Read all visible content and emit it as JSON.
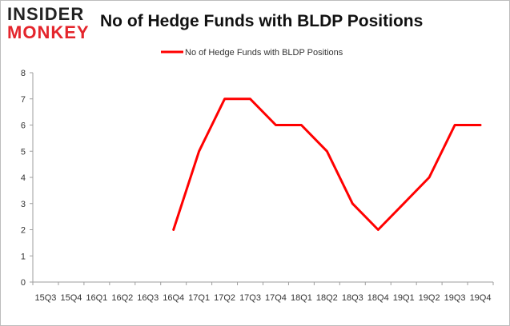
{
  "logo": {
    "line1": "INSIDER",
    "line2": "MONKEY"
  },
  "chart_data": {
    "type": "line",
    "title": "No of Hedge Funds with BLDP Positions",
    "xlabel": "",
    "ylabel": "",
    "categories": [
      "15Q3",
      "15Q4",
      "16Q1",
      "16Q2",
      "16Q3",
      "16Q4",
      "17Q1",
      "17Q2",
      "17Q3",
      "17Q4",
      "18Q1",
      "18Q2",
      "18Q3",
      "18Q4",
      "19Q1",
      "19Q2",
      "19Q3",
      "19Q4"
    ],
    "series": [
      {
        "name": "No of Hedge Funds with BLDP Positions",
        "color": "#ff0000",
        "values": [
          null,
          null,
          null,
          null,
          null,
          2,
          5,
          7,
          7,
          6,
          6,
          5,
          3,
          2,
          3,
          4,
          6,
          6
        ]
      }
    ],
    "ylim": [
      0,
      8
    ],
    "yticks": [
      0,
      1,
      2,
      3,
      4,
      5,
      6,
      7,
      8
    ],
    "grid": "none",
    "legend_position": "top-center"
  }
}
